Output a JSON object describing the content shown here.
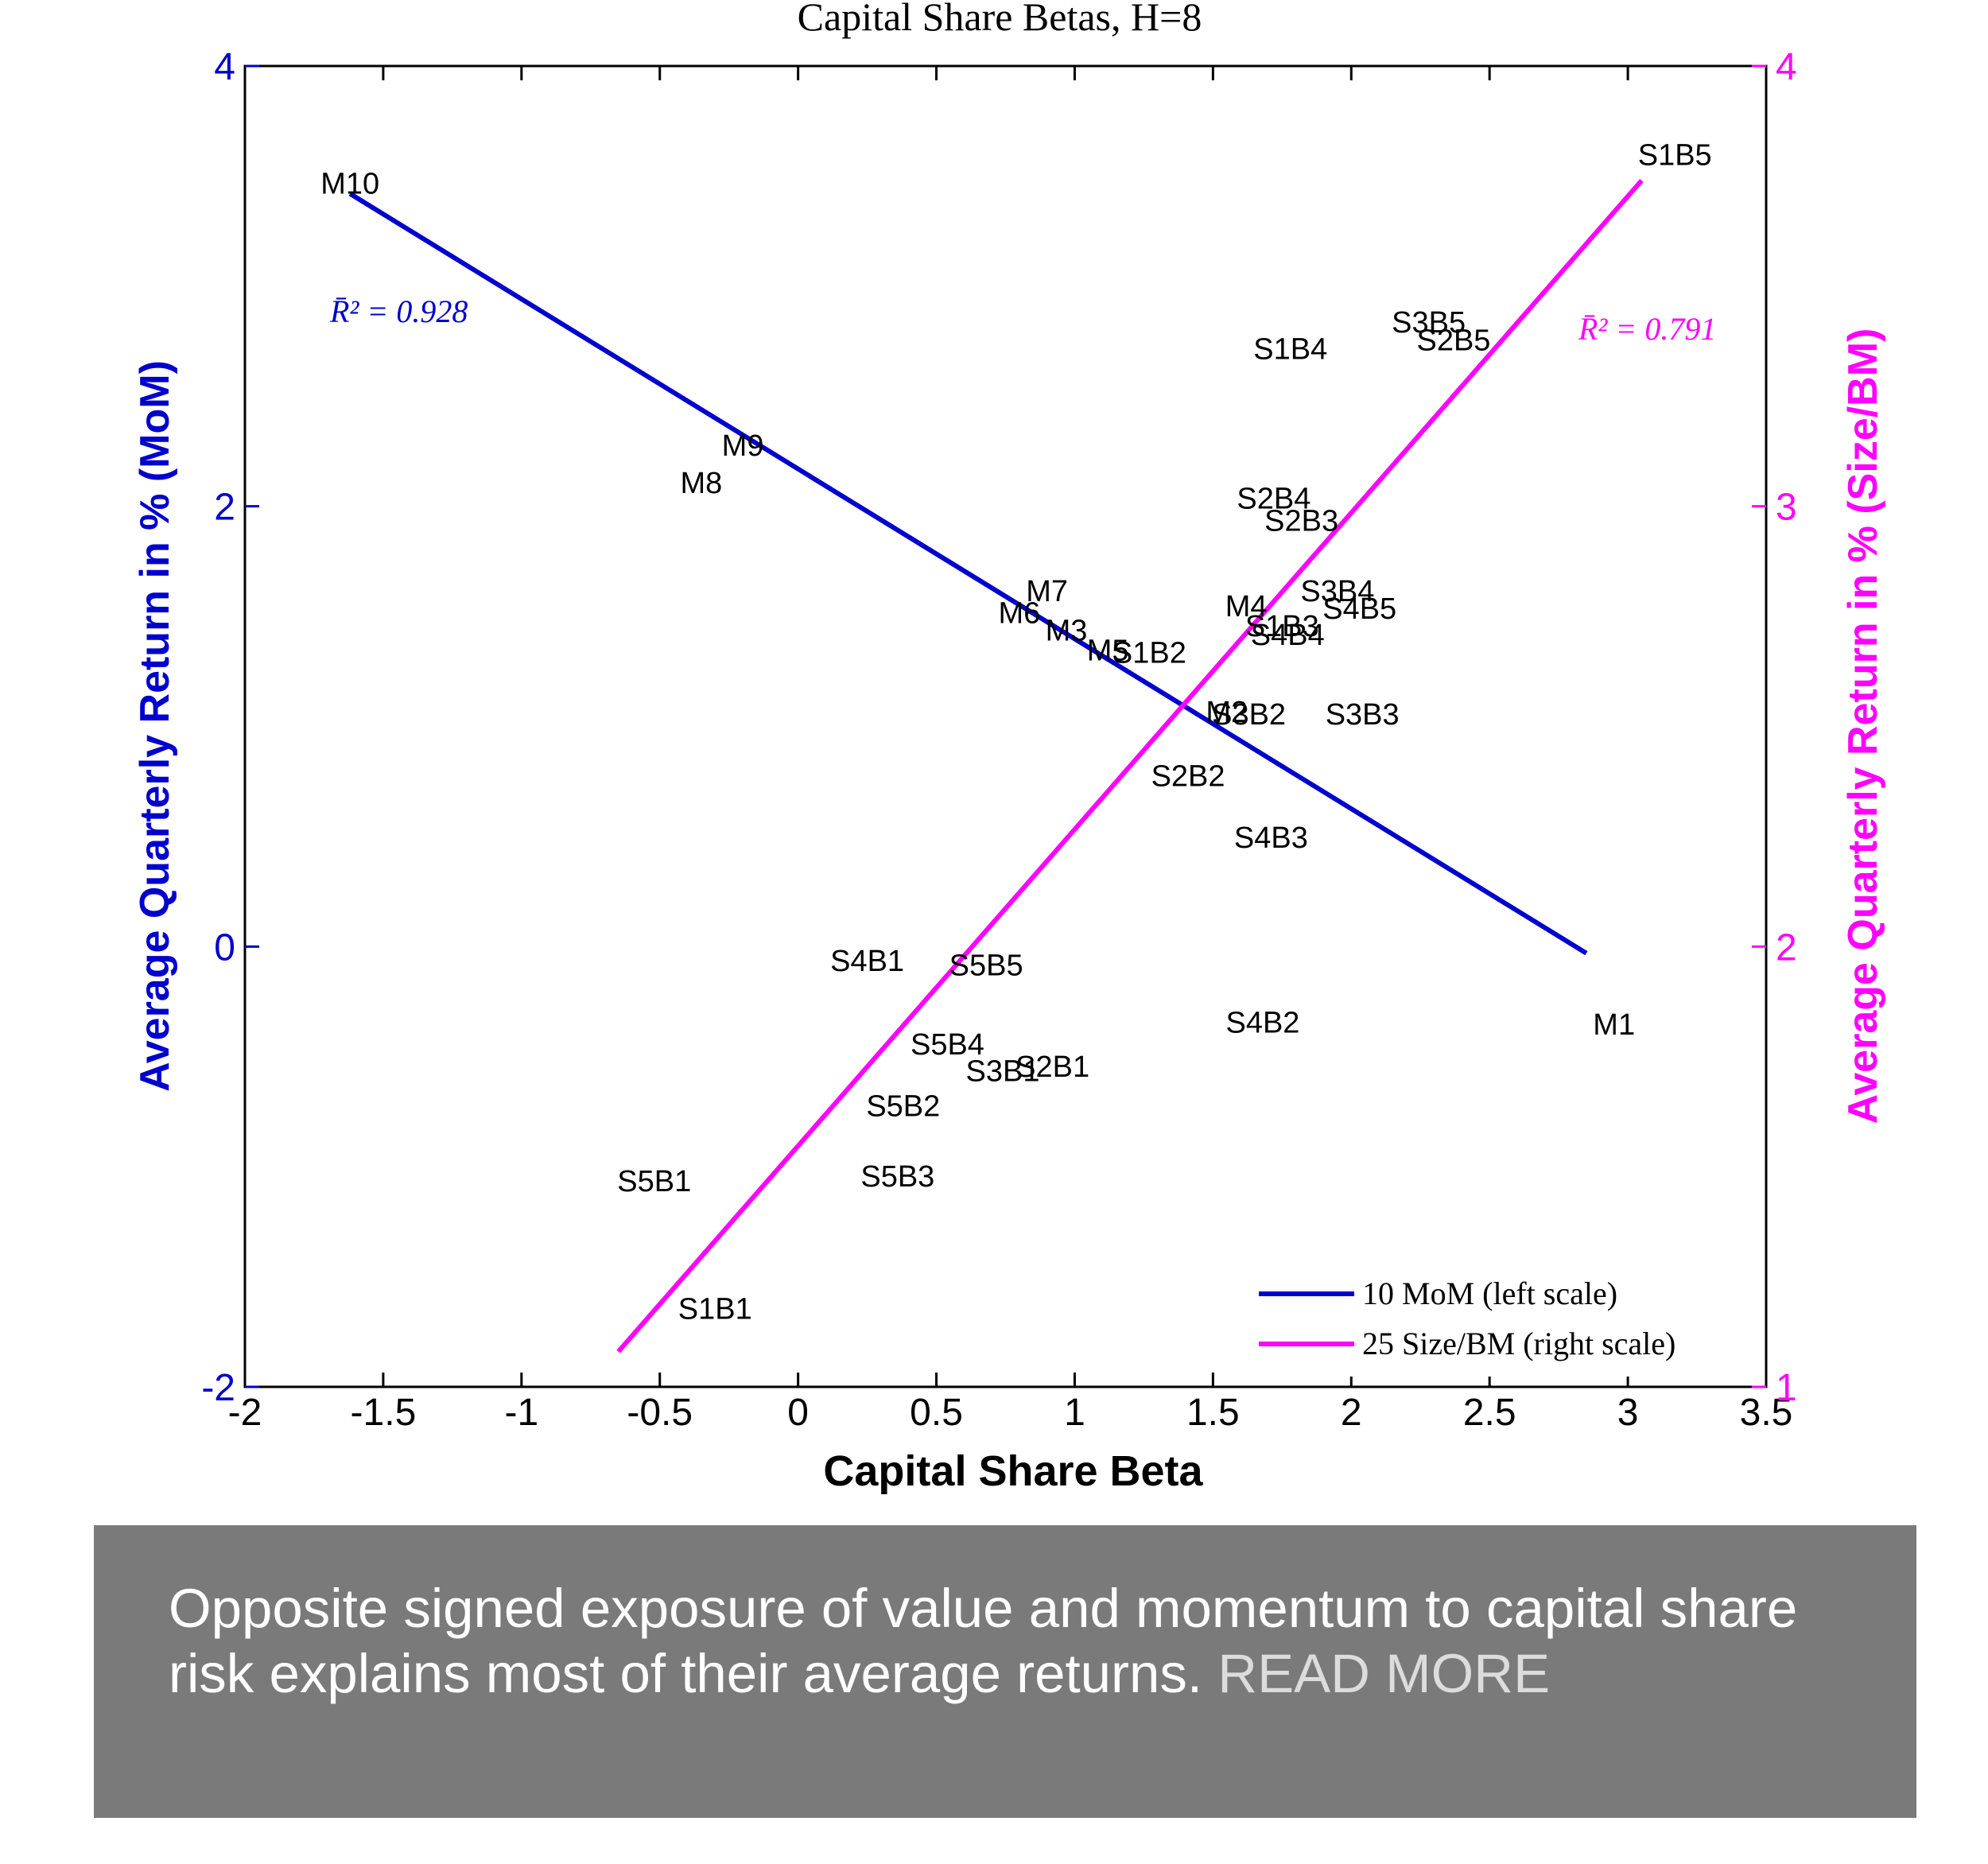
{
  "chart_data": {
    "type": "scatter",
    "title": "Capital Share Betas, H=8",
    "xlabel": "Capital Share Beta",
    "ylabel_left": "Average Quarterly Return in % (MoM)",
    "ylabel_right": "Average Quarterly Return in % (Size/BM)",
    "xlim": [
      -2,
      3.5
    ],
    "ylim_left": [
      -2,
      4
    ],
    "ylim_right": [
      1,
      4
    ],
    "xticks": [
      "-2",
      "-1.5",
      "-1",
      "-0.5",
      "0",
      "0.5",
      "1",
      "1.5",
      "2",
      "2.5",
      "3",
      "3.5"
    ],
    "yticks_left": [
      "-2",
      "0",
      "2",
      "4"
    ],
    "yticks_right": [
      "1",
      "2",
      "3",
      "4"
    ],
    "grid": false,
    "legend_position": "bottom-right",
    "colors": {
      "mom": "#0000cc",
      "sizebm": "#ff00ff",
      "text": "#000000"
    },
    "series": [
      {
        "name": "10 MoM (left scale)",
        "axis": "left",
        "color": "#0000cc",
        "r2_label": "R̄² = 0.928",
        "fit_line": [
          [
            -1.62,
            3.42
          ],
          [
            2.85,
            -0.03
          ]
        ],
        "points": [
          {
            "label": "M10",
            "x": -1.62,
            "y": 3.47
          },
          {
            "label": "M9",
            "x": -0.2,
            "y": 2.28
          },
          {
            "label": "M8",
            "x": -0.35,
            "y": 2.11
          },
          {
            "label": "M7",
            "x": 0.9,
            "y": 1.62
          },
          {
            "label": "M6",
            "x": 0.8,
            "y": 1.52
          },
          {
            "label": "M3",
            "x": 0.97,
            "y": 1.44
          },
          {
            "label": "M5",
            "x": 1.12,
            "y": 1.35
          },
          {
            "label": "M4",
            "x": 1.62,
            "y": 1.55
          },
          {
            "label": "M2",
            "x": 1.55,
            "y": 1.07
          },
          {
            "label": "M1",
            "x": 2.95,
            "y": -0.35
          }
        ]
      },
      {
        "name": "25 Size/BM (right scale)",
        "axis": "right",
        "color": "#ff00ff",
        "r2_label": "R̄² = 0.791",
        "fit_line": [
          [
            -0.65,
            1.08
          ],
          [
            3.05,
            3.74
          ]
        ],
        "points": [
          {
            "label": "S1B1",
            "x": -0.3,
            "y": 1.18
          },
          {
            "label": "S1B2",
            "x": 1.27,
            "y": 2.67
          },
          {
            "label": "S1B3",
            "x": 1.75,
            "y": 2.73
          },
          {
            "label": "S1B4",
            "x": 1.78,
            "y": 3.36
          },
          {
            "label": "S1B5",
            "x": 3.17,
            "y": 3.8
          },
          {
            "label": "S2B1",
            "x": 0.92,
            "y": 1.73
          },
          {
            "label": "S2B2",
            "x": 1.41,
            "y": 2.39
          },
          {
            "label": "S2B3",
            "x": 1.82,
            "y": 2.97
          },
          {
            "label": "S2B4",
            "x": 1.72,
            "y": 3.02
          },
          {
            "label": "S2B5",
            "x": 2.37,
            "y": 3.38
          },
          {
            "label": "S3B1",
            "x": 0.74,
            "y": 1.72
          },
          {
            "label": "S3B2",
            "x": 1.63,
            "y": 2.53
          },
          {
            "label": "S3B3",
            "x": 2.04,
            "y": 2.53
          },
          {
            "label": "S3B4",
            "x": 1.95,
            "y": 2.81
          },
          {
            "label": "S3B5",
            "x": 2.28,
            "y": 3.42
          },
          {
            "label": "S4B1",
            "x": 0.25,
            "y": 1.97
          },
          {
            "label": "S4B2",
            "x": 1.68,
            "y": 1.83
          },
          {
            "label": "S4B3",
            "x": 1.71,
            "y": 2.25
          },
          {
            "label": "S4B4",
            "x": 1.77,
            "y": 2.71
          },
          {
            "label": "S4B5",
            "x": 2.03,
            "y": 2.77
          },
          {
            "label": "S5B1",
            "x": -0.52,
            "y": 1.47
          },
          {
            "label": "S5B2",
            "x": 0.38,
            "y": 1.64
          },
          {
            "label": "S5B3",
            "x": 0.36,
            "y": 1.48
          },
          {
            "label": "S5B4",
            "x": 0.54,
            "y": 1.78
          },
          {
            "label": "S5B5",
            "x": 0.68,
            "y": 1.96
          }
        ]
      }
    ]
  },
  "caption": {
    "text": "Opposite signed exposure of value and momentum to capital share risk explains most of their average returns.",
    "link_label": "READ MORE"
  }
}
